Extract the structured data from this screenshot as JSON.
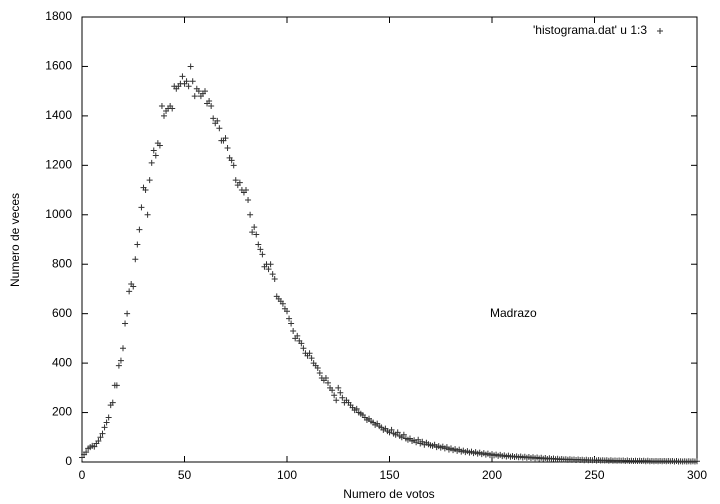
{
  "chart_data": {
    "type": "scatter",
    "xlabel": "Numero de votos",
    "ylabel": "Numero de veces",
    "annotation": "Madrazo",
    "legend": "top-right",
    "xlim": [
      0,
      300
    ],
    "xticks": [
      0,
      50,
      100,
      150,
      200,
      250,
      300
    ],
    "ylim": [
      0,
      1800
    ],
    "yticks": [
      0,
      200,
      400,
      600,
      800,
      1000,
      1200,
      1400,
      1600,
      1800
    ],
    "x": [
      0,
      1,
      2,
      3,
      4,
      5,
      6,
      7,
      8,
      9,
      10,
      11,
      12,
      13,
      14,
      15,
      16,
      17,
      18,
      19,
      20,
      21,
      22,
      23,
      24,
      25,
      26,
      27,
      28,
      29,
      30,
      31,
      32,
      33,
      34,
      35,
      36,
      37,
      38,
      39,
      40,
      41,
      42,
      43,
      44,
      45,
      46,
      47,
      48,
      49,
      50,
      51,
      52,
      53,
      54,
      55,
      56,
      57,
      58,
      59,
      60,
      61,
      62,
      63,
      64,
      65,
      66,
      67,
      68,
      69,
      70,
      71,
      72,
      73,
      74,
      75,
      76,
      77,
      78,
      79,
      80,
      81,
      82,
      83,
      84,
      85,
      86,
      87,
      88,
      89,
      90,
      91,
      92,
      93,
      94,
      95,
      96,
      97,
      98,
      99,
      100,
      101,
      102,
      103,
      104,
      105,
      106,
      107,
      108,
      109,
      110,
      111,
      112,
      113,
      114,
      115,
      116,
      117,
      118,
      119,
      120,
      121,
      122,
      123,
      124,
      125,
      126,
      127,
      128,
      129,
      130,
      131,
      132,
      133,
      134,
      135,
      136,
      137,
      138,
      139,
      140,
      141,
      142,
      143,
      144,
      145,
      146,
      147,
      148,
      149,
      150,
      151,
      152,
      153,
      154,
      155,
      156,
      157,
      158,
      159,
      160,
      161,
      162,
      163,
      164,
      165,
      166,
      167,
      168,
      169,
      170,
      171,
      172,
      173,
      174,
      175,
      176,
      177,
      178,
      179,
      180,
      181,
      182,
      183,
      184,
      185,
      186,
      187,
      188,
      189,
      190,
      191,
      192,
      193,
      194,
      195,
      196,
      197,
      198,
      199,
      200,
      201,
      202,
      203,
      204,
      205,
      206,
      207,
      208,
      209,
      210,
      211,
      212,
      213,
      214,
      215,
      216,
      217,
      218,
      219,
      220,
      221,
      222,
      223,
      224,
      225,
      226,
      227,
      228,
      229,
      230,
      231,
      232,
      233,
      234,
      235,
      236,
      237,
      238,
      239,
      240,
      241,
      242,
      243,
      244,
      245,
      246,
      247,
      248,
      249,
      250,
      251,
      252,
      253,
      254,
      255,
      256,
      257,
      258,
      259,
      260,
      261,
      262,
      263,
      264,
      265,
      266,
      267,
      268,
      269,
      270,
      271,
      272,
      273,
      274,
      275,
      276,
      277,
      278,
      279,
      280,
      281,
      282,
      283,
      284,
      285,
      286,
      287,
      288,
      289,
      290,
      291,
      292,
      293,
      294,
      295,
      296,
      297,
      298,
      299,
      300
    ],
    "series": [
      {
        "name": "'histograma.dat' u 1:3",
        "color": "#333333",
        "values": [
          18,
          30,
          40,
          55,
          60,
          65,
          62,
          75,
          85,
          100,
          115,
          140,
          160,
          180,
          230,
          240,
          310,
          310,
          390,
          410,
          460,
          560,
          600,
          690,
          720,
          710,
          820,
          880,
          940,
          1030,
          1110,
          1100,
          1000,
          1140,
          1210,
          1260,
          1240,
          1290,
          1280,
          1440,
          1400,
          1420,
          1430,
          1440,
          1430,
          1520,
          1510,
          1520,
          1530,
          1560,
          1530,
          1540,
          1520,
          1600,
          1540,
          1480,
          1510,
          1500,
          1480,
          1490,
          1500,
          1450,
          1460,
          1440,
          1390,
          1370,
          1380,
          1350,
          1300,
          1300,
          1310,
          1270,
          1230,
          1220,
          1200,
          1140,
          1120,
          1130,
          1100,
          1090,
          1100,
          1060,
          1000,
          930,
          950,
          920,
          880,
          860,
          840,
          790,
          800,
          780,
          800,
          760,
          740,
          670,
          660,
          650,
          640,
          620,
          610,
          580,
          560,
          530,
          500,
          510,
          490,
          480,
          460,
          440,
          430,
          440,
          420,
          400,
          390,
          380,
          360,
          340,
          330,
          340,
          320,
          300,
          290,
          270,
          250,
          300,
          280,
          260,
          240,
          250,
          240,
          230,
          220,
          210,
          215,
          200,
          195,
          190,
          180,
          170,
          175,
          165,
          160,
          150,
          155,
          145,
          140,
          130,
          135,
          125,
          120,
          130,
          115,
          110,
          120,
          105,
          100,
          110,
          95,
          90,
          95,
          85,
          88,
          80,
          90,
          75,
          82,
          70,
          78,
          72,
          68,
          65,
          70,
          60,
          64,
          58,
          62,
          55,
          60,
          50,
          55,
          48,
          52,
          45,
          50,
          42,
          46,
          40,
          44,
          38,
          42,
          36,
          40,
          34,
          38,
          32,
          36,
          30,
          34,
          28,
          32,
          27,
          30,
          25,
          29,
          24,
          27,
          22,
          26,
          21,
          24,
          20,
          23,
          19,
          22,
          18,
          21,
          17,
          20,
          16,
          19,
          15,
          18,
          14,
          17,
          13,
          16,
          12,
          15,
          12,
          14,
          11,
          13,
          10,
          12,
          10,
          11,
          9,
          11,
          9,
          10,
          8,
          10,
          8,
          9,
          7,
          9,
          7,
          8,
          7,
          8,
          6,
          8,
          6,
          7,
          6,
          7,
          5,
          7,
          5,
          6,
          5,
          6,
          5,
          6,
          4,
          6,
          4,
          5,
          4,
          5,
          4,
          5,
          4,
          5,
          3,
          5,
          3,
          4,
          3,
          4,
          3,
          4,
          3,
          4,
          3,
          4,
          3,
          4,
          2,
          4,
          2,
          3,
          2,
          3,
          2,
          3,
          2,
          3,
          2,
          3
        ]
      }
    ]
  }
}
